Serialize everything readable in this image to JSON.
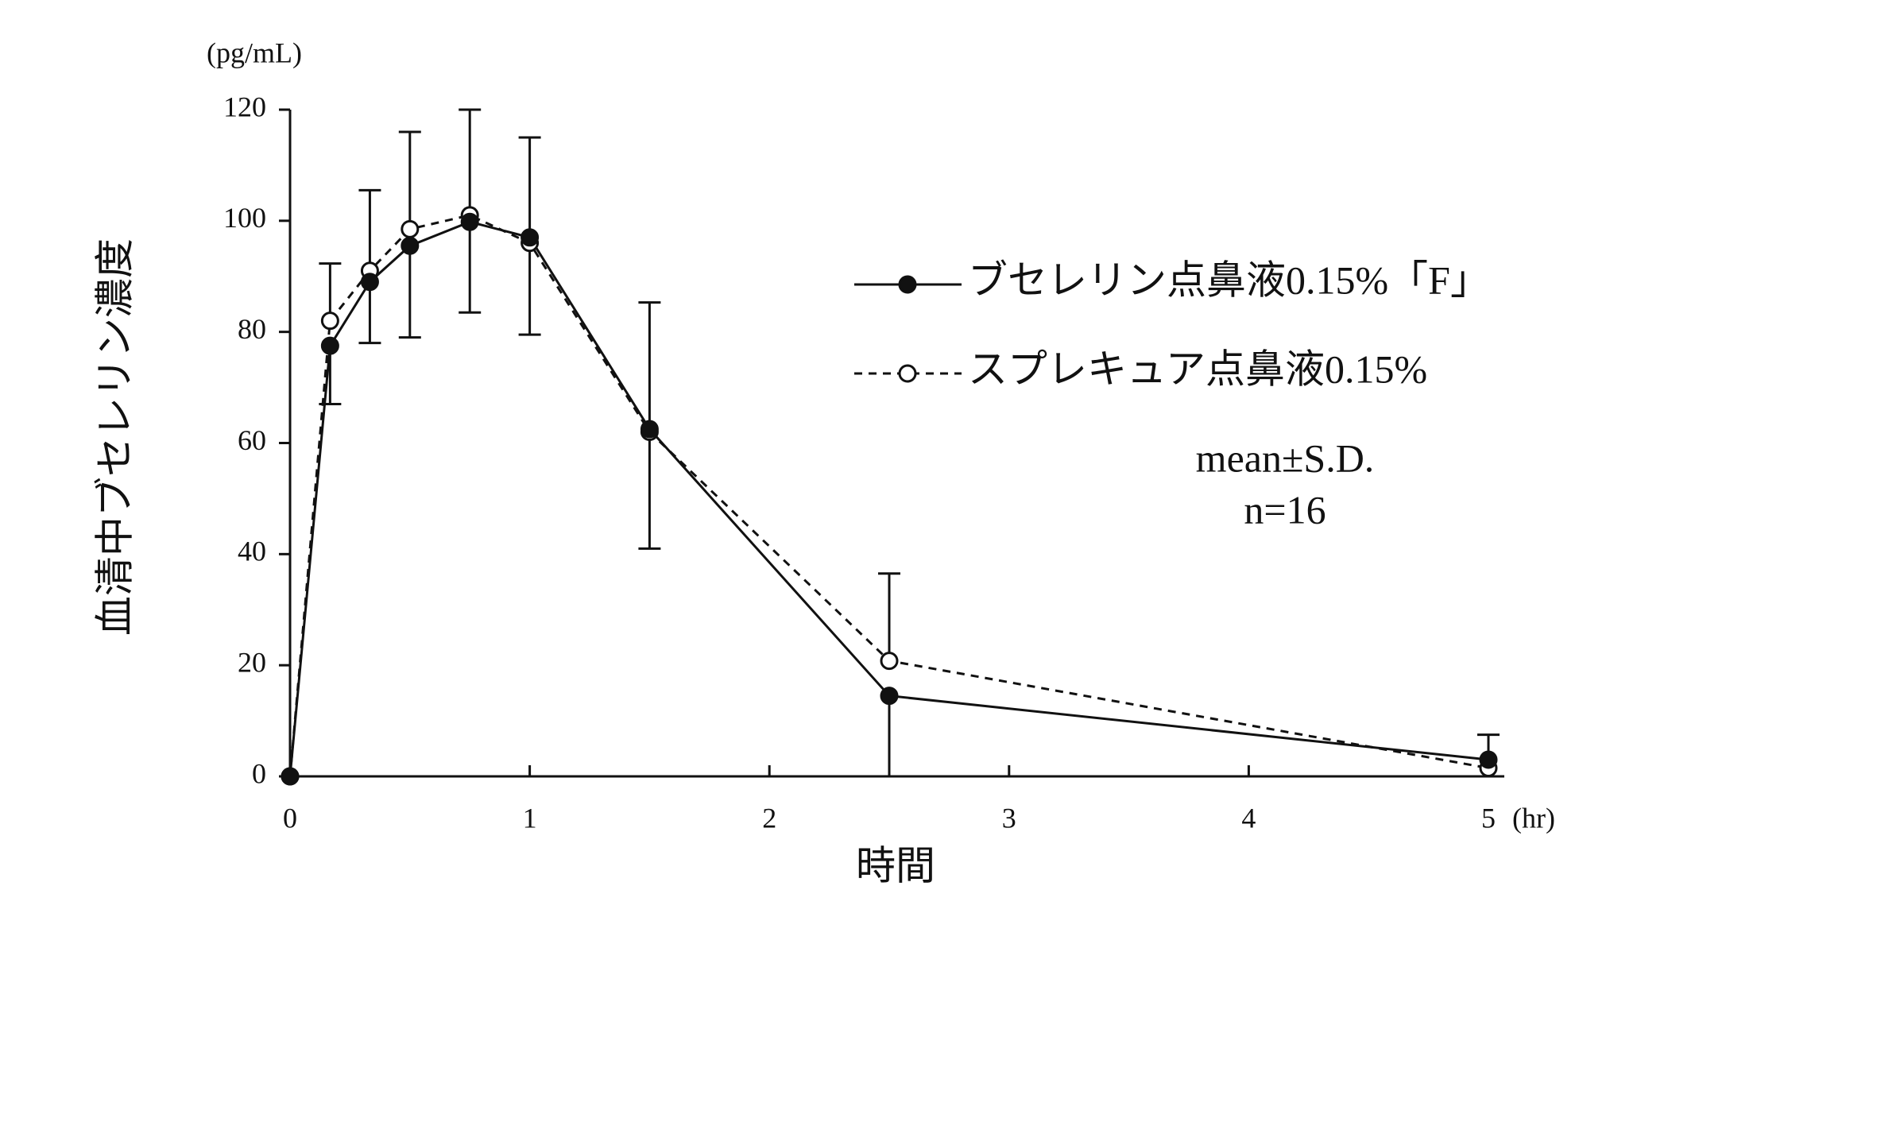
{
  "chart_data": {
    "type": "line",
    "x_label": "時間",
    "x_unit": "(hr)",
    "y_label": "血清中ブセレリン濃度",
    "y_unit": "(pg/mL)",
    "annotations": [
      "mean±S.D.",
      "n=16"
    ],
    "x": [
      0,
      0.167,
      0.333,
      0.5,
      0.75,
      1,
      1.5,
      2.5,
      5
    ],
    "series": [
      {
        "name": "ブセレリン点鼻液0.15%「F」",
        "color": "#111111",
        "marker": "filled",
        "dash": false,
        "values": [
          0,
          77.5,
          89,
          95.5,
          99.8,
          97,
          62.5,
          14.5,
          3
        ],
        "errors": [
          null,
          10.5,
          11,
          16.5,
          16.3,
          17.5,
          21.5,
          14.5,
          null
        ],
        "error_direction": "down"
      },
      {
        "name": "スプレキュア点鼻液0.15%",
        "color": "#111111",
        "marker": "open",
        "dash": true,
        "values": [
          0,
          82,
          91,
          98.5,
          101,
          96,
          62,
          20.8,
          1.5
        ],
        "errors": [
          null,
          10.3,
          14.5,
          17.5,
          19,
          19,
          23.3,
          15.7,
          6
        ],
        "error_direction": "up"
      }
    ],
    "xlim": [
      0,
      5
    ],
    "xticks": [
      0,
      1,
      2,
      3,
      4,
      5
    ],
    "ylim": [
      0,
      120
    ],
    "yticks": [
      0,
      20,
      40,
      60,
      80,
      100,
      120
    ]
  }
}
